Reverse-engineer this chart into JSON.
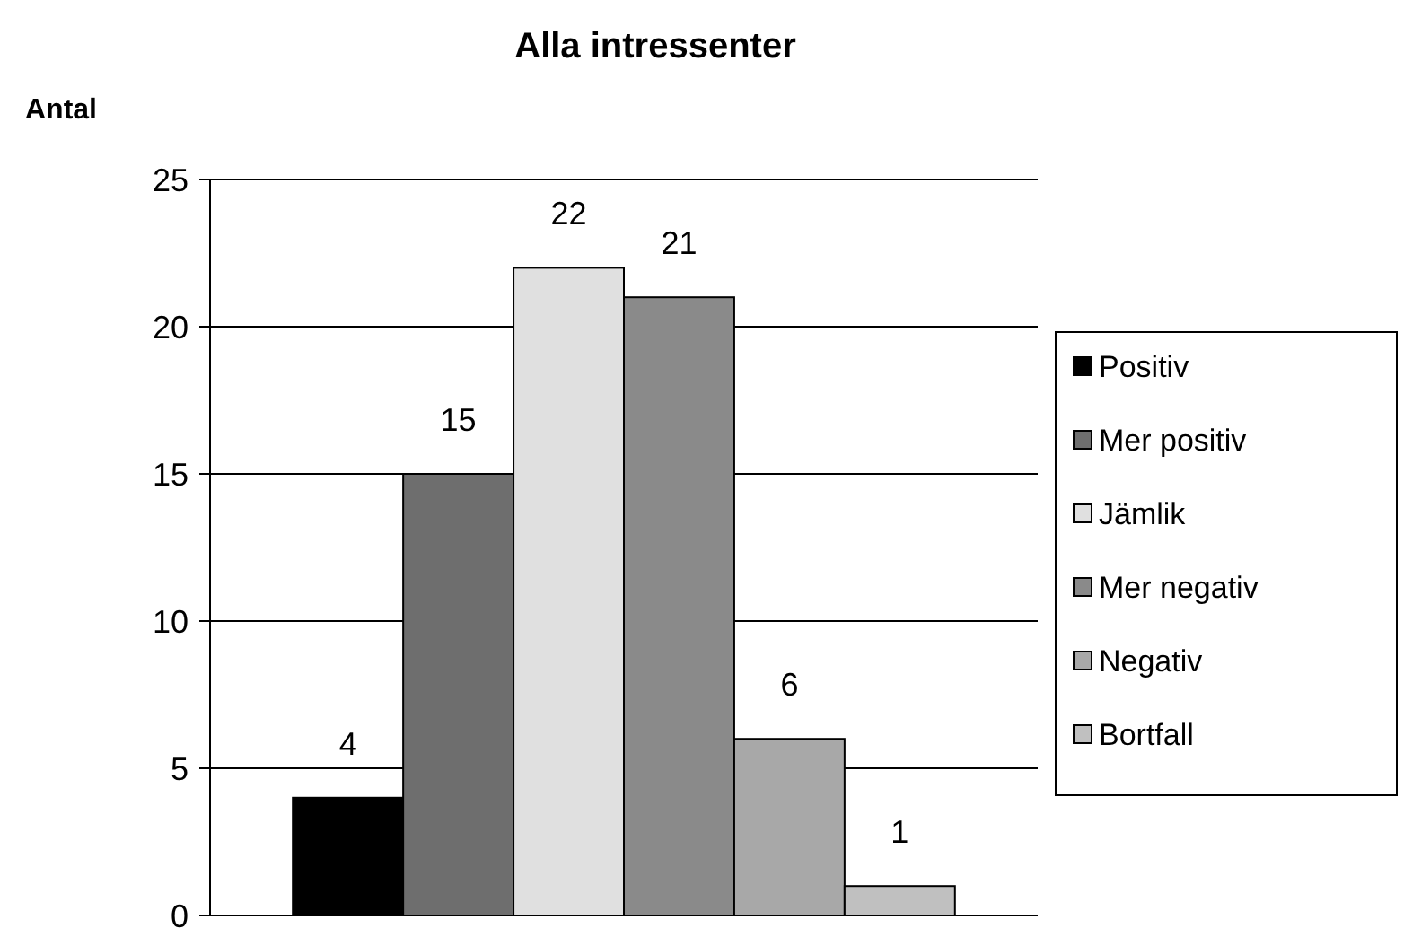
{
  "chart_data": {
    "type": "bar",
    "title": "Alla intressenter",
    "ylabel": "Antal",
    "categories": [
      null
    ],
    "series": [
      {
        "name": "Positiv",
        "color": "#000000",
        "values": [
          4
        ]
      },
      {
        "name": "Mer positiv",
        "color": "#6e6e6e",
        "values": [
          15
        ]
      },
      {
        "name": "Jämlik",
        "color": "#e0e0e0",
        "values": [
          22
        ]
      },
      {
        "name": "Mer negativ",
        "color": "#8a8a8a",
        "values": [
          21
        ]
      },
      {
        "name": "Negativ",
        "color": "#a8a8a8",
        "values": [
          6
        ]
      },
      {
        "name": "Bortfall",
        "color": "#c0c0c0",
        "values": [
          1
        ]
      }
    ],
    "ylim": [
      0,
      25
    ],
    "yticks": [
      0,
      5,
      10,
      15,
      20,
      25
    ],
    "grid": "y",
    "legend": "right",
    "data_labels": true
  }
}
